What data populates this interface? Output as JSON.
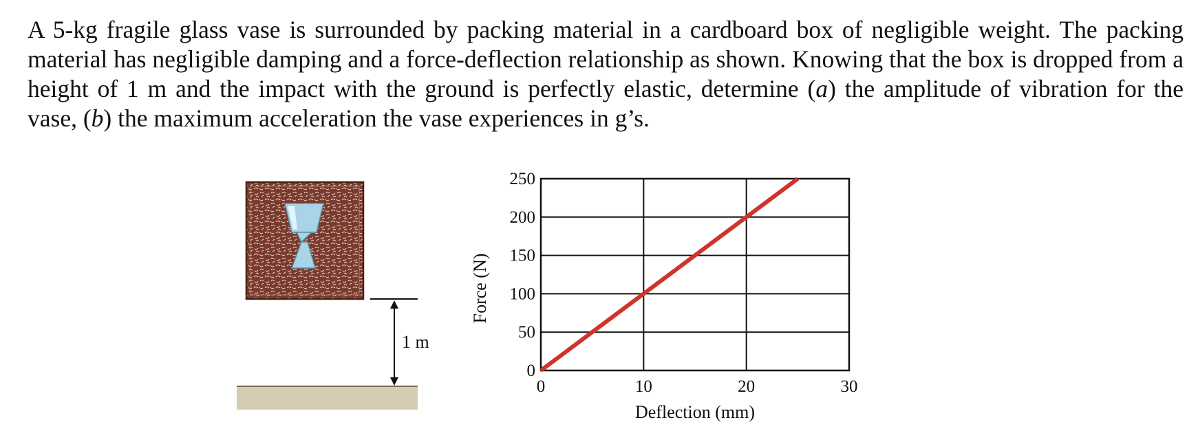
{
  "problem": {
    "seg1": "A 5-kg fragile glass vase is surrounded by packing material in a cardboard box of negligible weight. The packing material has negligible damping and a force-deflection relationship as shown. Knowing that the box is dropped from a height of 1 m and the impact with the ground is perfectly elastic, determine (",
    "part_a": "a",
    "seg2": ") the amplitude of vibration for the vase, (",
    "part_b": "b",
    "seg3": ") the maximum acceleration the vase experiences in g’s."
  },
  "box_figure": {
    "height_label": "1 m",
    "colors": {
      "box": "#7a3a2e",
      "vase": "#a9d3e6",
      "ground": "#d8cbb4"
    }
  },
  "chart_data": {
    "type": "line",
    "xlabel": "Deflection (mm)",
    "ylabel": "Force (N)",
    "xlim": [
      0,
      30
    ],
    "ylim": [
      0,
      250
    ],
    "x_ticks": [
      0,
      10,
      20,
      30
    ],
    "y_ticks": [
      0,
      50,
      100,
      150,
      200,
      250
    ],
    "grid": true,
    "series": [
      {
        "x": [
          0,
          25
        ],
        "y": [
          0,
          250
        ],
        "color": "#d0332b"
      }
    ]
  }
}
